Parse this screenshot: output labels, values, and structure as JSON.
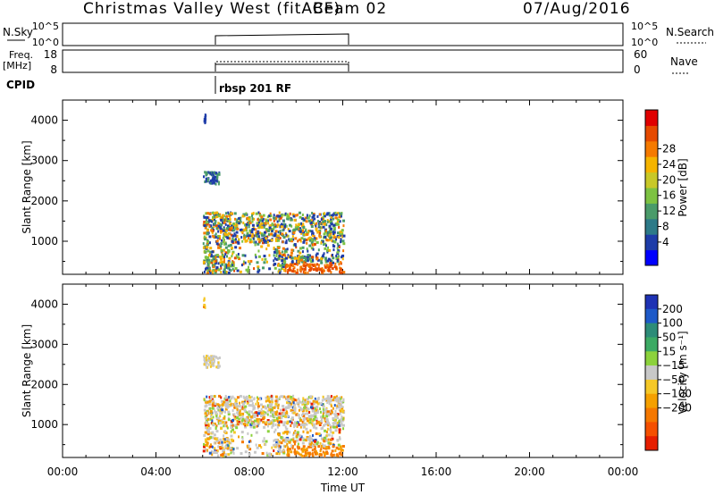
{
  "header": {
    "title": "Christmas Valley West (fitACF)",
    "beam": "Beam 02",
    "date": "07/Aug/2016"
  },
  "top_panels": {
    "nsky": {
      "label": "N.Sky",
      "ticks_left": [
        "10^5",
        "10^0"
      ],
      "ticks_right": [
        "10^5",
        "10^0"
      ],
      "right_label": "N.Search"
    },
    "freq": {
      "label_line1": "Freq.",
      "label_line2": "[MHz]",
      "ticks_left": [
        "18",
        "8"
      ],
      "ticks_right": [
        "60",
        "0"
      ],
      "right_label": "Nave"
    },
    "cpid": {
      "label": "CPID",
      "program": "rbsp 201 RF"
    }
  },
  "chart_data": [
    {
      "type": "heatmap",
      "title": "",
      "xlabel": "Time UT",
      "ylabel": "Slant Range [km]",
      "xlim": [
        "00:00",
        "24:00"
      ],
      "x_ticks": [
        "00:00",
        "04:00",
        "08:00",
        "12:00",
        "16:00",
        "20:00",
        "00:00"
      ],
      "ylim": [
        180,
        4500
      ],
      "y_ticks": [
        1000,
        2000,
        3000,
        4000
      ],
      "colorbar": {
        "label": "Power [dB]",
        "ticks": [
          "4",
          "8",
          "12",
          "16",
          "20",
          "24",
          "28"
        ],
        "colors": [
          "#0000ff",
          "#1e3ca8",
          "#2d7a88",
          "#4a9b6a",
          "#7dc242",
          "#c8c828",
          "#f5b400",
          "#f57a00",
          "#e64a00",
          "#e00000"
        ]
      },
      "data_time_range": [
        "06:00",
        "12:00"
      ]
    },
    {
      "type": "heatmap",
      "title": "",
      "xlabel": "Time UT",
      "ylabel": "Slant Range [km]",
      "xlim": [
        "00:00",
        "24:00"
      ],
      "x_ticks": [
        "00:00",
        "04:00",
        "08:00",
        "12:00",
        "16:00",
        "20:00",
        "00:00"
      ],
      "ylim": [
        180,
        4500
      ],
      "y_ticks": [
        1000,
        2000,
        3000,
        4000
      ],
      "colorbar": {
        "label": "Velocity [m s⁻¹]",
        "ticks": [
          "200",
          "100",
          "50",
          "15",
          "−15",
          "−50",
          "−100",
          "−200"
        ],
        "colors": [
          "#1e32b4",
          "#1e5ac8",
          "#2d8c78",
          "#3caa64",
          "#8cd23c",
          "#c8c8c8",
          "#f5c828",
          "#f5a000",
          "#f57800",
          "#f55000",
          "#e61e00"
        ]
      },
      "data_time_range": [
        "06:00",
        "12:00"
      ]
    }
  ]
}
